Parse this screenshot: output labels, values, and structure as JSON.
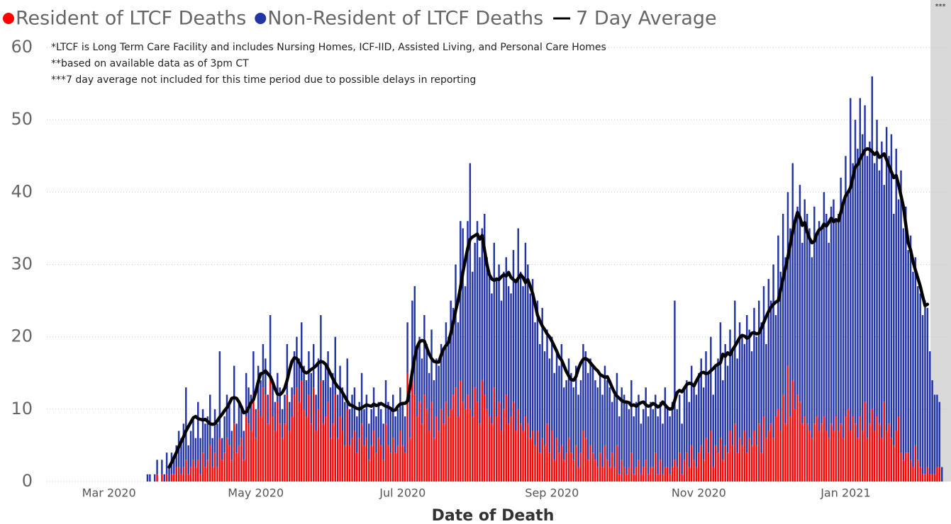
{
  "chart_data": {
    "type": "bar",
    "stacked": true,
    "legend": "top-left",
    "grid": true,
    "x_label": "Date of Death",
    "annotations": [
      "*LTCF is Long Term Care Facility and includes Nursing Homes, ICF-IID, Assisted Living, and Personal Care Homes",
      "**based on available data as of 3pm CT",
      "***7 day average not included for this time period due to possible delays in reporting"
    ],
    "shaded_note": "***",
    "ylim": [
      0,
      60
    ],
    "yticks": [
      0,
      10,
      20,
      30,
      40,
      50,
      60
    ],
    "xlim": [
      -43,
      332
    ],
    "xticks": [
      {
        "value": -16,
        "label": "Mar 2020"
      },
      {
        "value": 45,
        "label": "May 2020"
      },
      {
        "value": 106,
        "label": "Jul 2020"
      },
      {
        "value": 168,
        "label": "Sep 2020"
      },
      {
        "value": 229,
        "label": "Nov 2020"
      },
      {
        "value": 290,
        "label": "Jan 2021"
      }
    ],
    "categories": [
      null,
      null,
      null,
      null,
      null,
      null,
      null,
      null,
      null,
      null,
      null,
      null,
      null,
      null,
      null,
      null,
      null,
      null,
      null,
      null,
      null,
      null,
      null,
      null,
      null,
      null,
      null,
      null,
      null,
      null,
      null,
      null,
      null,
      null,
      null,
      null,
      null,
      null,
      null,
      null,
      null,
      null,
      null,
      null,
      null,
      null,
      null,
      null,
      null,
      null,
      null,
      null,
      null,
      null,
      null,
      null,
      null,
      null,
      null,
      null,
      null,
      null,
      null,
      null,
      null,
      null,
      null,
      null,
      null,
      null,
      null,
      null,
      null,
      null,
      null,
      null,
      null,
      null,
      null,
      null,
      null,
      null,
      null,
      null,
      null,
      null,
      null,
      null,
      null,
      null,
      null,
      null,
      null,
      null,
      null,
      null,
      null,
      null,
      null,
      null,
      null,
      null,
      null,
      null,
      null,
      null,
      null,
      null,
      null,
      null,
      null,
      null,
      null,
      null,
      null,
      null,
      null,
      null,
      null,
      null,
      null,
      null,
      null,
      null,
      null,
      null,
      null,
      null,
      null,
      null,
      null,
      null,
      null,
      null,
      null,
      null,
      null,
      null,
      null,
      null,
      null,
      null,
      null,
      null,
      null,
      null,
      null,
      null,
      null,
      null,
      null,
      null,
      null,
      null,
      null,
      null,
      null,
      null,
      null,
      null,
      null,
      null,
      null,
      null,
      null,
      null,
      null,
      null,
      null,
      null,
      null,
      null,
      null,
      null,
      null,
      null,
      null,
      null,
      null,
      null,
      null,
      null,
      null,
      null,
      null,
      null,
      null,
      null,
      null,
      null,
      null,
      null,
      null,
      null,
      null,
      null,
      null,
      null,
      null,
      null,
      null,
      null,
      null,
      null,
      null,
      null,
      null,
      null,
      null,
      null,
      null,
      null,
      null,
      null,
      null,
      null,
      null,
      null,
      null,
      null,
      null,
      null,
      null,
      null,
      null,
      null,
      null,
      null,
      null,
      null,
      null,
      null,
      null,
      null,
      null,
      null,
      null,
      null,
      null,
      null,
      null,
      null,
      null,
      null,
      null,
      null,
      null,
      null,
      null,
      null,
      null,
      null,
      null,
      null,
      null,
      null,
      null,
      null,
      null,
      null,
      null,
      null,
      null,
      null,
      null,
      null,
      null,
      null,
      null,
      null,
      null,
      null,
      null,
      null,
      null,
      null,
      null,
      null,
      null,
      null,
      null,
      null,
      null,
      null,
      null,
      null,
      null,
      null,
      null,
      null,
      null,
      null,
      null,
      null,
      null,
      null,
      null,
      null,
      null,
      null,
      null,
      null,
      null,
      null,
      null,
      null,
      null,
      null,
      null,
      null,
      null,
      null,
      null,
      null,
      null,
      null,
      null,
      null,
      null,
      null,
      null,
      null,
      null,
      null,
      null,
      null,
      null,
      null,
      null,
      null,
      null
    ],
    "series": [
      {
        "name": "Resident of LTCF Deaths",
        "color": "#fe0000",
        "values": [
          0,
          0,
          0,
          0,
          1,
          0,
          1,
          0,
          1,
          0,
          1,
          1,
          2,
          2,
          1,
          2,
          3,
          1,
          2,
          3,
          2,
          3,
          1,
          4,
          2,
          3,
          5,
          2,
          4,
          2,
          6,
          3,
          4,
          6,
          5,
          3,
          8,
          4,
          5,
          6,
          3,
          9,
          8,
          7,
          12,
          6,
          10,
          9,
          13,
          12,
          8,
          14,
          9,
          7,
          11,
          8,
          6,
          8,
          12,
          7,
          9,
          12,
          13,
          11,
          14,
          10,
          9,
          12,
          8,
          13,
          7,
          10,
          14,
          8,
          9,
          11,
          6,
          8,
          12,
          6,
          9,
          7,
          5,
          10,
          5,
          6,
          7,
          4,
          6,
          8,
          5,
          6,
          3,
          5,
          7,
          4,
          6,
          5,
          3,
          8,
          5,
          4,
          6,
          4,
          5,
          7,
          5,
          4,
          15,
          6,
          14,
          12,
          9,
          11,
          8,
          12,
          10,
          7,
          11,
          6,
          9,
          7,
          10,
          8,
          11,
          9,
          10,
          12,
          13,
          9,
          14,
          11,
          10,
          12,
          10,
          9,
          13,
          11,
          8,
          14,
          12,
          10,
          9,
          8,
          13,
          9,
          11,
          7,
          10,
          12,
          8,
          9,
          11,
          7,
          10,
          8,
          7,
          9,
          8,
          6,
          7,
          5,
          7,
          4,
          6,
          5,
          8,
          4,
          7,
          3,
          6,
          4,
          5,
          3,
          4,
          6,
          4,
          3,
          5,
          2,
          4,
          7,
          6,
          3,
          5,
          4,
          3,
          2,
          4,
          2,
          5,
          3,
          2,
          4,
          2,
          5,
          1,
          3,
          2,
          1,
          2,
          4,
          1,
          2,
          3,
          1,
          2,
          3,
          1,
          2,
          2,
          4,
          1,
          3,
          1,
          2,
          2,
          1,
          2,
          3,
          2,
          4,
          1,
          3,
          4,
          2,
          5,
          3,
          2,
          4,
          5,
          3,
          6,
          4,
          7,
          2,
          5,
          4,
          6,
          3,
          5,
          4,
          7,
          5,
          8,
          4,
          6,
          5,
          7,
          4,
          6,
          5,
          7,
          5,
          8,
          4,
          9,
          6,
          7,
          8,
          6,
          9,
          10,
          7,
          12,
          8,
          16,
          9,
          14,
          10,
          12,
          11,
          8,
          9,
          8,
          7,
          6,
          8,
          9,
          7,
          8,
          9,
          7,
          6,
          8,
          7,
          9,
          7,
          8,
          6,
          9,
          10,
          7,
          9,
          8,
          6,
          9,
          7,
          11,
          6,
          8,
          10,
          7,
          9,
          8,
          6,
          11,
          7,
          8,
          6,
          5,
          7,
          9,
          4,
          3,
          4,
          4,
          3,
          2,
          5,
          3,
          2,
          1,
          1,
          2,
          1,
          1,
          1,
          2,
          2,
          0
        ]
      },
      {
        "name": "Non-Resident of LTCF Deaths",
        "color": "#2234a6",
        "values": [
          1,
          1,
          0,
          1,
          2,
          0,
          2,
          1,
          3,
          2,
          3,
          2,
          3,
          5,
          5,
          6,
          10,
          4,
          5,
          6,
          4,
          8,
          5,
          6,
          6,
          6,
          7,
          4,
          6,
          6,
          12,
          3,
          5,
          6,
          6,
          4,
          8,
          4,
          6,
          4,
          4,
          6,
          5,
          5,
          6,
          4,
          6,
          5,
          6,
          5,
          4,
          9,
          5,
          4,
          4,
          5,
          4,
          4,
          7,
          4,
          4,
          6,
          7,
          6,
          8,
          6,
          5,
          6,
          7,
          6,
          5,
          7,
          9,
          6,
          7,
          7,
          7,
          7,
          8,
          6,
          7,
          6,
          6,
          7,
          5,
          6,
          6,
          5,
          5,
          7,
          5,
          6,
          5,
          5,
          6,
          5,
          5,
          5,
          5,
          6,
          6,
          6,
          6,
          5,
          5,
          6,
          6,
          5,
          7,
          6,
          11,
          15,
          9,
          9,
          9,
          11,
          9,
          8,
          10,
          8,
          8,
          9,
          9,
          10,
          11,
          11,
          15,
          12,
          17,
          13,
          22,
          24,
          17,
          24,
          34,
          20,
          20,
          25,
          23,
          21,
          25,
          21,
          20,
          18,
          20,
          19,
          19,
          18,
          19,
          19,
          19,
          17,
          21,
          21,
          25,
          21,
          20,
          24,
          22,
          20,
          21,
          17,
          18,
          15,
          18,
          13,
          13,
          13,
          13,
          12,
          12,
          12,
          14,
          10,
          10,
          11,
          11,
          10,
          11,
          10,
          10,
          12,
          12,
          12,
          12,
          12,
          11,
          11,
          11,
          10,
          11,
          11,
          11,
          7,
          10,
          10,
          8,
          10,
          10,
          10,
          8,
          10,
          8,
          9,
          9,
          7,
          8,
          10,
          8,
          9,
          8,
          8,
          8,
          8,
          7,
          11,
          8,
          8,
          9,
          22,
          8,
          8,
          7,
          10,
          10,
          9,
          11,
          10,
          10,
          11,
          12,
          10,
          12,
          11,
          13,
          10,
          11,
          13,
          16,
          11,
          14,
          12,
          14,
          13,
          17,
          13,
          16,
          15,
          12,
          19,
          15,
          13,
          17,
          15,
          17,
          18,
          18,
          13,
          21,
          17,
          24,
          14,
          24,
          22,
          25,
          23,
          24,
          26,
          30,
          26,
          26,
          30,
          25,
          30,
          29,
          28,
          25,
          30,
          25,
          29,
          27,
          31,
          30,
          27,
          30,
          32,
          27,
          30,
          34,
          33,
          36,
          30,
          46,
          35,
          42,
          40,
          44,
          41,
          41,
          39,
          39,
          46,
          37,
          41,
          35,
          41,
          30,
          42,
          37,
          42,
          32,
          39,
          30,
          39,
          32,
          34,
          28,
          31,
          27,
          26,
          24,
          24,
          22,
          24,
          22,
          17,
          13,
          11,
          10,
          9,
          2
        ]
      },
      {
        "name": "7 Day Average",
        "color": "#000000",
        "type": "line",
        "values": [
          null,
          null,
          null,
          null,
          null,
          null,
          null,
          null,
          null,
          2,
          2.6,
          3.3,
          4,
          4.8,
          5.5,
          6.2,
          7,
          7.6,
          8.2,
          8.8,
          9,
          8.7,
          8.6,
          8.5,
          8.6,
          8.3,
          8,
          7.9,
          8,
          8.4,
          8.9,
          9.3,
          9.8,
          10.2,
          10.8,
          11.5,
          11.6,
          11.5,
          11,
          10.3,
          9.5,
          9.6,
          10.2,
          10.9,
          11.3,
          12.4,
          13.8,
          14.9,
          15,
          15.3,
          14.9,
          14.5,
          13.7,
          12.8,
          12.1,
          12,
          12.3,
          12.9,
          14,
          15.4,
          16.6,
          17.1,
          17,
          16.4,
          15.8,
          15.2,
          15,
          15.2,
          15.5,
          15.7,
          16,
          16.4,
          16.6,
          16.5,
          16.2,
          15.6,
          14.9,
          14.2,
          13.6,
          13.1,
          12.8,
          12.3,
          11.7,
          11.1,
          10.6,
          10.5,
          10.3,
          10.1,
          10,
          10.2,
          10.4,
          10.6,
          10.5,
          10.4,
          10.7,
          10.5,
          10.6,
          10.8,
          10.6,
          10.4,
          10.3,
          10.1,
          9.8,
          9.9,
          10.4,
          10.7,
          10.8,
          10.8,
          11.1,
          13,
          15.2,
          17.1,
          18.6,
          19.3,
          19.5,
          19.4,
          18.5,
          17.6,
          17,
          16.6,
          16.5,
          16.5,
          17.5,
          18.3,
          18.8,
          19.2,
          20.5,
          22,
          23.6,
          25,
          26.8,
          28.9,
          30.6,
          32.2,
          33.5,
          33.8,
          34,
          34.2,
          33.5,
          34,
          32,
          30,
          28.6,
          28,
          27.8,
          28,
          27.9,
          28.3,
          28.6,
          28.4,
          28.9,
          28.2,
          27.9,
          27.6,
          28.1,
          28.6,
          28.2,
          27.5,
          27.9,
          27,
          26,
          24.5,
          23,
          22.2,
          21.5,
          21,
          20.4,
          20,
          19.4,
          18.7,
          18,
          17.2,
          16.8,
          16,
          15.2,
          14.6,
          14.1,
          14,
          14.5,
          15.6,
          16.4,
          16.9,
          17,
          16.8,
          16.4,
          16,
          15.6,
          15.3,
          14.8,
          14.6,
          14.4,
          14.5,
          13.8,
          13,
          12.3,
          11.8,
          11.5,
          11.2,
          11,
          11,
          10.9,
          10.5,
          10.6,
          10.4,
          10.7,
          10.9,
          11,
          10.6,
          10.4,
          10.5,
          10.8,
          10.6,
          10.3,
          10.5,
          11,
          10.6,
          10.2,
          10,
          10.1,
          11.2,
          12.3,
          12.6,
          12.4,
          12.9,
          13.4,
          13.6,
          13.5,
          13.2,
          13.9,
          14.5,
          15,
          15.1,
          14.9,
          15,
          15.3,
          15.6,
          16,
          16.2,
          16.4,
          17.6,
          17.3,
          17.8,
          17.5,
          18.2,
          18.7,
          19.3,
          19.9,
          20.2,
          20.1,
          19.8,
          20,
          20.5,
          20.6,
          20.4,
          20.5,
          21.2,
          22,
          22.8,
          23.5,
          24.1,
          24.5,
          24.8,
          25,
          26.5,
          28,
          29.5,
          31,
          32.8,
          34.5,
          36,
          37.2,
          36.5,
          35.4,
          35.8,
          34.5,
          33.6,
          33,
          33.2,
          34.2,
          34.8,
          35,
          35.6,
          35.3,
          35.8,
          36.4,
          35.9,
          36.2,
          36,
          37.2,
          38.5,
          39.5,
          40,
          40.6,
          42,
          43.5,
          43.8,
          44.6,
          45.2,
          45.8,
          46,
          45.9,
          45.6,
          45.2,
          45.5,
          44.8,
          45,
          45.3,
          44.5,
          43.6,
          42.8,
          42,
          42.3,
          41,
          39.5,
          38,
          35.5,
          33,
          32,
          30.4,
          29.2,
          28.1,
          27,
          25.6,
          24.3,
          24.5,
          null,
          null,
          null,
          null,
          null,
          null
        ]
      }
    ]
  }
}
